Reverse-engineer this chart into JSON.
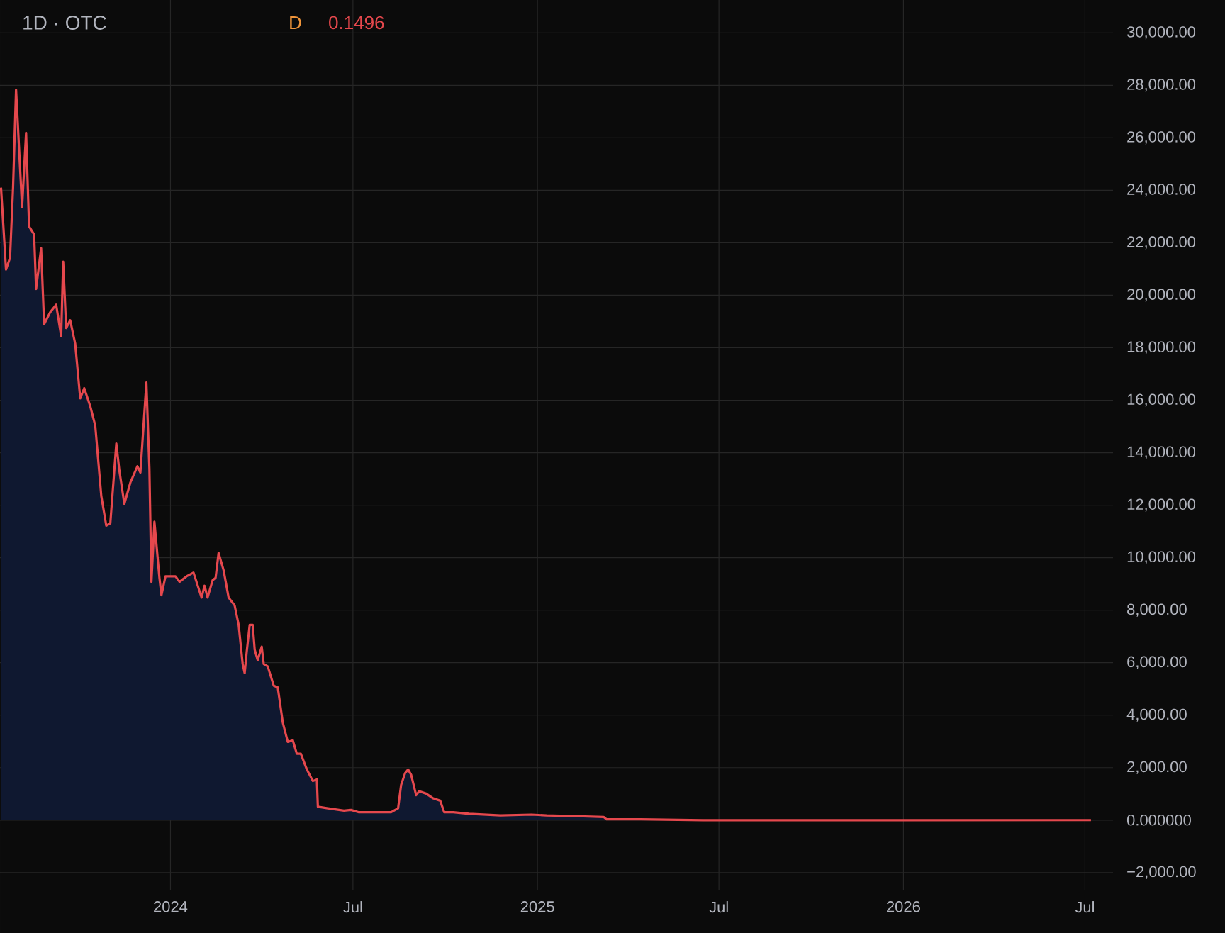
{
  "chart_data": {
    "type": "area",
    "title": "1D · OTC",
    "annotations": [
      "D",
      "0.1496"
    ],
    "x": [
      "2023-07-16",
      "2023-07-21",
      "2023-07-25",
      "2023-07-28",
      "2023-07-31",
      "2023-08-06",
      "2023-08-10",
      "2023-08-13",
      "2023-08-18",
      "2023-08-20",
      "2023-08-25",
      "2023-08-28",
      "2023-09-03",
      "2023-09-09",
      "2023-09-14",
      "2023-09-16",
      "2023-09-19",
      "2023-09-23",
      "2023-09-28",
      "2023-10-03",
      "2023-10-07",
      "2023-10-13",
      "2023-10-18",
      "2023-10-21",
      "2023-10-24",
      "2023-10-29",
      "2023-11-02",
      "2023-11-08",
      "2023-11-11",
      "2023-11-16",
      "2023-11-22",
      "2023-11-29",
      "2023-12-02",
      "2023-12-08",
      "2023-12-11",
      "2023-12-13",
      "2023-12-16",
      "2023-12-21",
      "2023-12-23",
      "2023-12-27",
      "2024-01-06",
      "2024-01-10",
      "2024-01-17",
      "2024-01-24",
      "2024-01-27",
      "2024-02-01",
      "2024-02-04",
      "2024-02-07",
      "2024-02-12",
      "2024-02-15",
      "2024-02-18",
      "2024-02-23",
      "2024-02-28",
      "2024-03-05",
      "2024-03-09",
      "2024-03-13",
      "2024-03-15",
      "2024-03-17",
      "2024-03-20",
      "2024-03-23",
      "2024-03-25",
      "2024-03-28",
      "2024-04-01",
      "2024-04-03",
      "2024-04-07",
      "2024-04-13",
      "2024-04-17",
      "2024-04-22",
      "2024-04-27",
      "2024-05-02",
      "2024-05-06",
      "2024-05-10",
      "2024-05-16",
      "2024-05-22",
      "2024-05-26",
      "2024-05-27",
      "2024-06-06",
      "2024-06-22",
      "2024-06-29",
      "2024-07-07",
      "2024-07-23",
      "2024-08-08",
      "2024-08-15",
      "2024-08-18",
      "2024-08-22",
      "2024-08-25",
      "2024-08-28",
      "2024-09-02",
      "2024-09-05",
      "2024-09-12",
      "2024-09-19",
      "2024-09-26",
      "2024-09-30",
      "2024-10-09",
      "2024-10-25",
      "2024-11-25",
      "2024-12-26",
      "2025-01-10",
      "2025-02-11",
      "2025-03-08",
      "2025-03-11",
      "2025-04-14",
      "2025-06-15",
      "2025-09-01",
      "2025-11-18",
      "2026-07-07"
    ],
    "series": [
      {
        "color": "#e5484d",
        "values": [
          24100,
          20980,
          21430,
          24100,
          27830,
          23360,
          26190,
          22620,
          22320,
          20240,
          21790,
          18900,
          19350,
          19640,
          18450,
          21280,
          18750,
          19050,
          18150,
          16070,
          16460,
          15770,
          15030,
          13690,
          12350,
          11220,
          11310,
          14350,
          13330,
          12050,
          12860,
          13480,
          13240,
          16670,
          13390,
          9080,
          11370,
          9230,
          8570,
          9290,
          9290,
          9080,
          9290,
          9430,
          9080,
          8480,
          8930,
          8480,
          9140,
          9230,
          10180,
          9520,
          8480,
          8180,
          7440,
          5950,
          5600,
          6400,
          7440,
          7440,
          6490,
          6100,
          6610,
          5950,
          5860,
          5120,
          5060,
          3720,
          2980,
          3040,
          2530,
          2530,
          1930,
          1490,
          1550,
          510,
          450,
          360,
          390,
          300,
          300,
          300,
          450,
          1340,
          1790,
          1930,
          1730,
          950,
          1100,
          1010,
          830,
          740,
          300,
          300,
          240,
          180,
          210,
          180,
          150,
          120,
          30,
          30,
          0,
          0,
          0,
          0.1496
        ]
      }
    ],
    "xlim": [
      "2023-07-15",
      "2026-07-29"
    ],
    "xticks": [
      {
        "value": "2024-01-01",
        "label": "2024"
      },
      {
        "value": "2024-07-01",
        "label": "Jul"
      },
      {
        "value": "2025-01-01",
        "label": "2025"
      },
      {
        "value": "2025-07-01",
        "label": "Jul"
      },
      {
        "value": "2026-01-01",
        "label": "2026"
      },
      {
        "value": "2026-07-01",
        "label": "Jul"
      }
    ],
    "ylim": [
      -2680,
      31250
    ],
    "yticks": [
      {
        "value": -2000,
        "label": "−2,000.00"
      },
      {
        "value": 0,
        "label": "0.000000"
      },
      {
        "value": 2000,
        "label": "2,000.00"
      },
      {
        "value": 4000,
        "label": "4,000.00"
      },
      {
        "value": 6000,
        "label": "6,000.00"
      },
      {
        "value": 8000,
        "label": "8,000.00"
      },
      {
        "value": 10000,
        "label": "10,000.00"
      },
      {
        "value": 12000,
        "label": "12,000.00"
      },
      {
        "value": 14000,
        "label": "14,000.00"
      },
      {
        "value": 16000,
        "label": "16,000.00"
      },
      {
        "value": 18000,
        "label": "18,000.00"
      },
      {
        "value": 20000,
        "label": "20,000.00"
      },
      {
        "value": 22000,
        "label": "22,000.00"
      },
      {
        "value": 24000,
        "label": "24,000.00"
      },
      {
        "value": 26000,
        "label": "26,000.00"
      },
      {
        "value": 28000,
        "label": "28,000.00"
      },
      {
        "value": 30000,
        "label": "30,000.00"
      }
    ],
    "grid": true
  }
}
